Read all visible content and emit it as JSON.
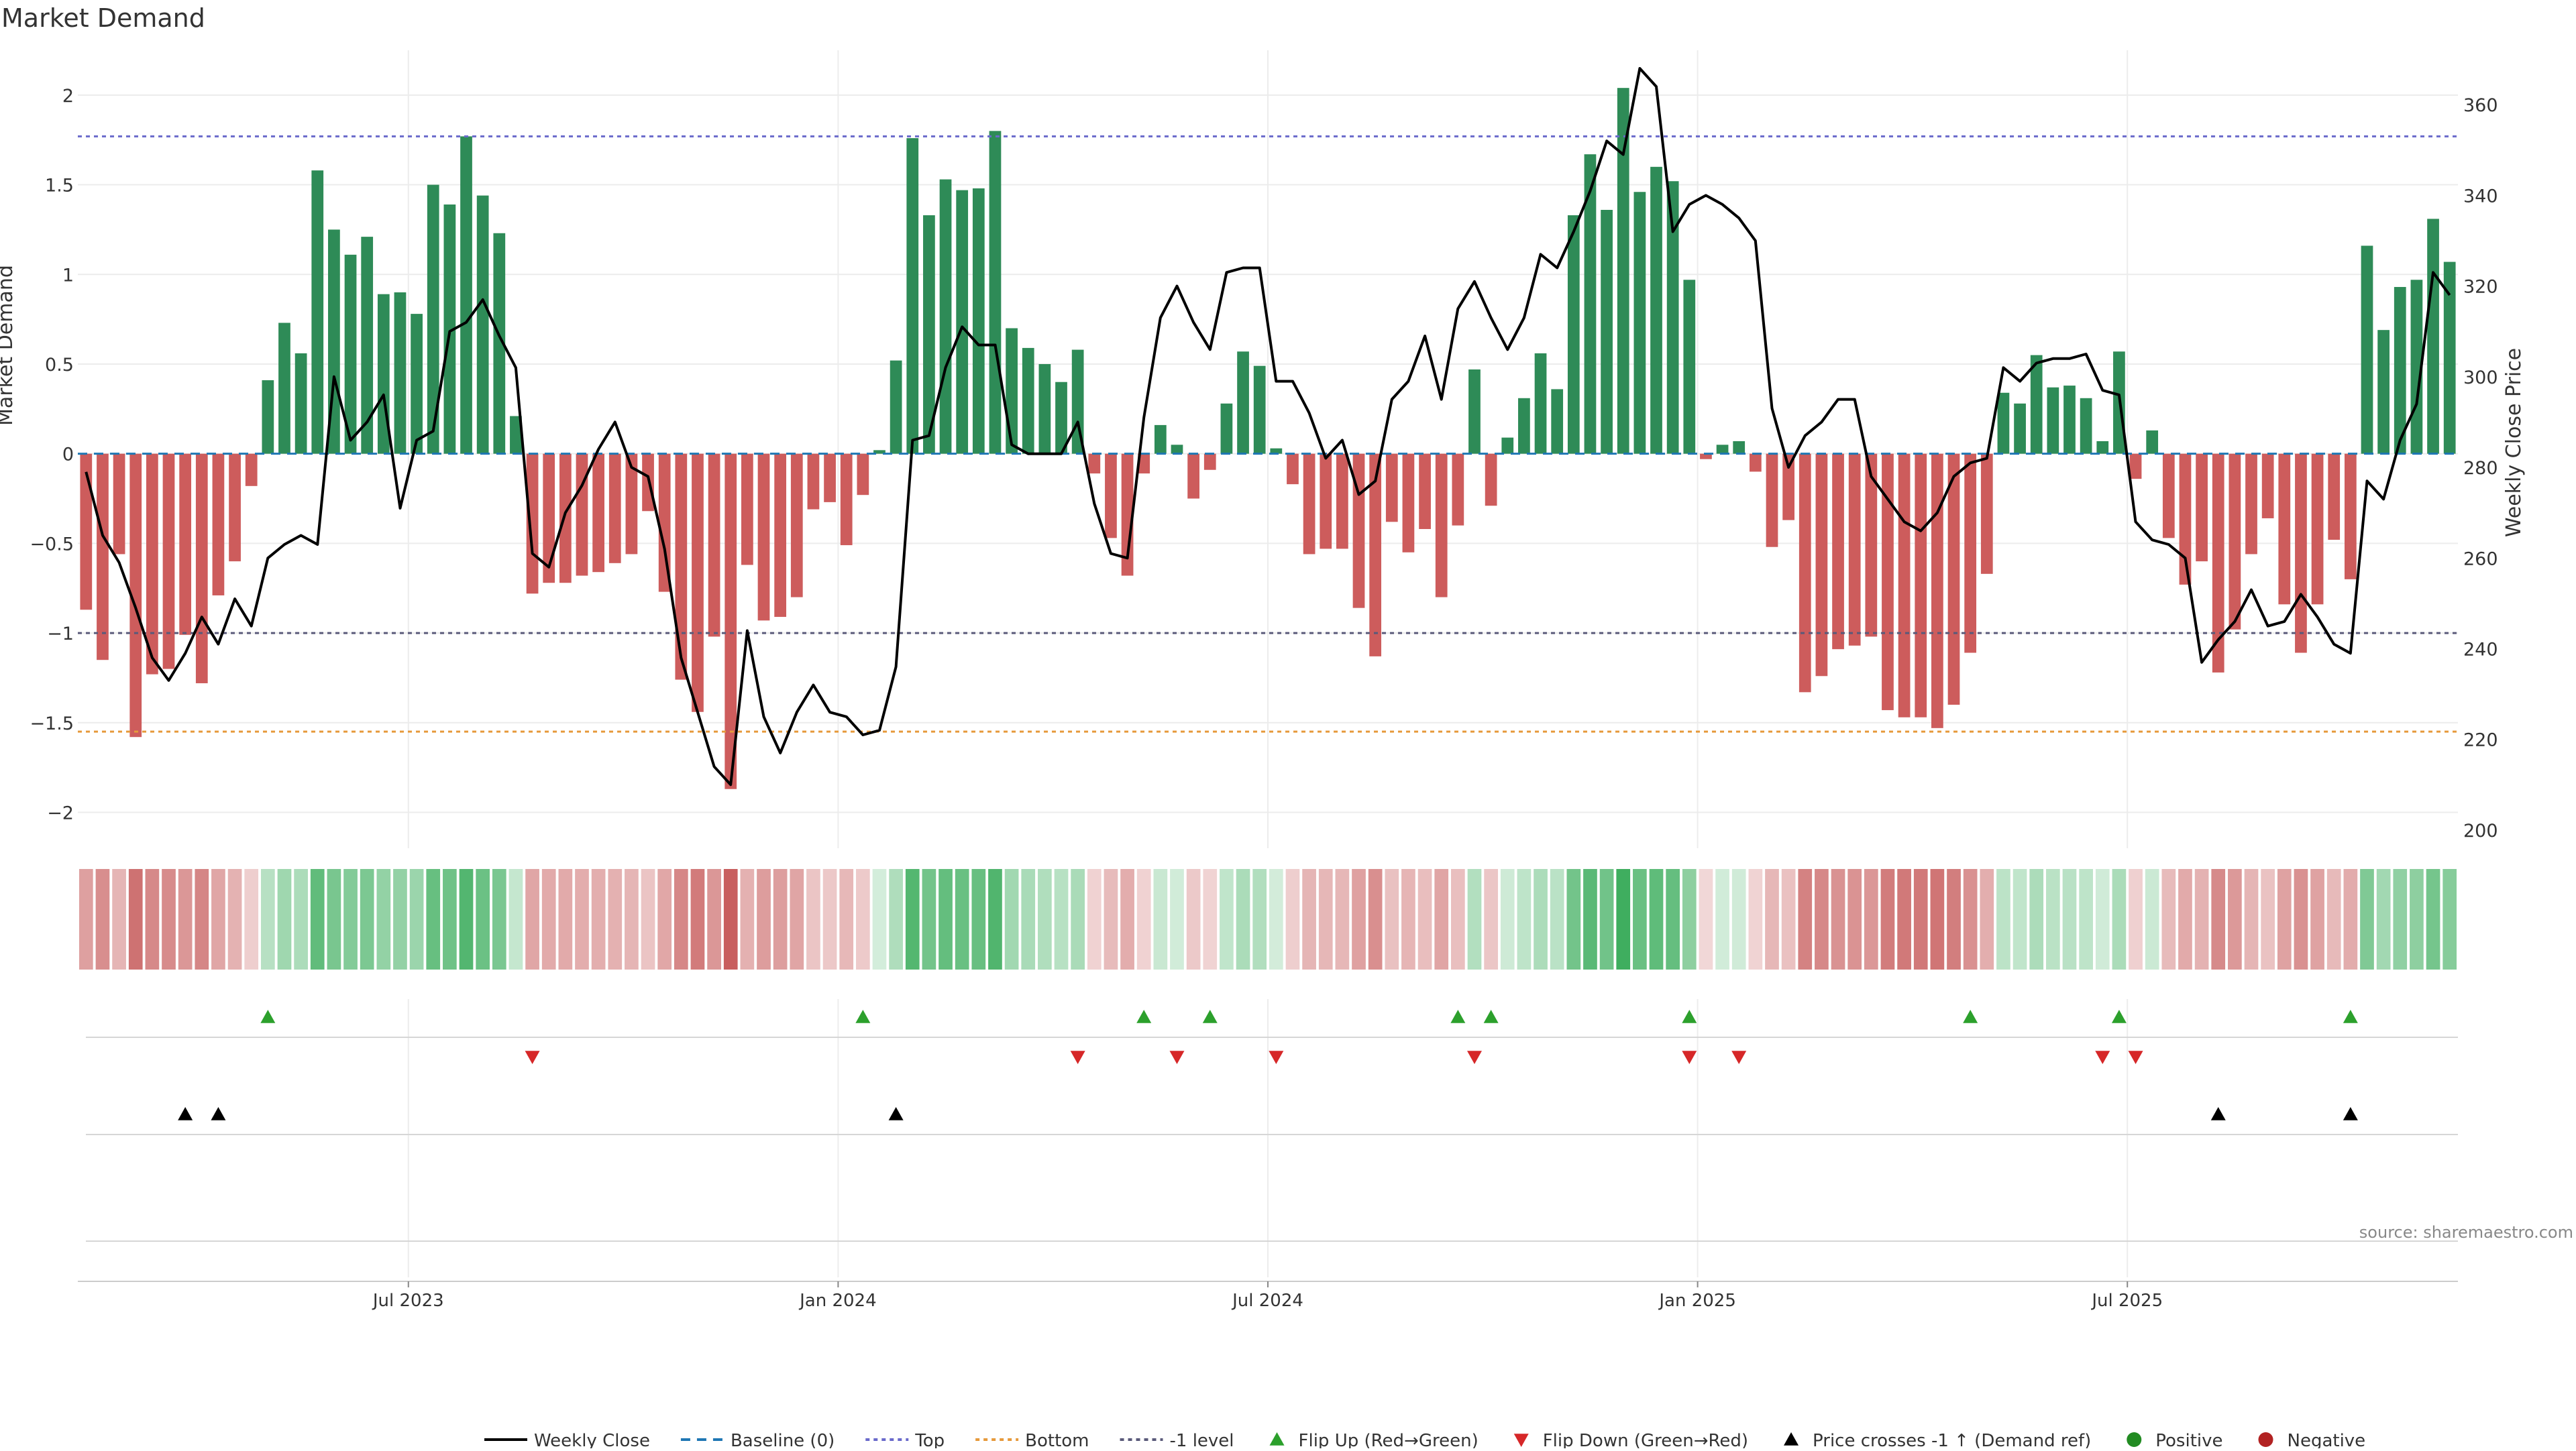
{
  "chart_data": {
    "type": "bar",
    "title": "Market Demand",
    "ylabel_left": "Market Demand",
    "ylabel_right": "Weekly Close Price",
    "source": "source: sharemaestro.com",
    "ylim_left": [
      -2.2,
      2.25
    ],
    "ylim_right": [
      196,
      372
    ],
    "yticks_left": [
      {
        "v": 2,
        "label": "2"
      },
      {
        "v": 1.5,
        "label": "1.5"
      },
      {
        "v": 1,
        "label": "1"
      },
      {
        "v": 0.5,
        "label": "0.5"
      },
      {
        "v": 0,
        "label": "0"
      },
      {
        "v": -0.5,
        "label": "−0.5"
      },
      {
        "v": -1,
        "label": "−1"
      },
      {
        "v": -1.5,
        "label": "−1.5"
      },
      {
        "v": -2,
        "label": "−2"
      }
    ],
    "yticks_right": [
      {
        "v": 360,
        "label": "360"
      },
      {
        "v": 340,
        "label": "340"
      },
      {
        "v": 320,
        "label": "320"
      },
      {
        "v": 300,
        "label": "300"
      },
      {
        "v": 280,
        "label": "280"
      },
      {
        "v": 260,
        "label": "260"
      },
      {
        "v": 240,
        "label": "240"
      },
      {
        "v": 220,
        "label": "220"
      },
      {
        "v": 200,
        "label": "200"
      }
    ],
    "xticks": [
      {
        "week": 20,
        "label": "Jul 2023"
      },
      {
        "week": 46,
        "label": "Jan 2024"
      },
      {
        "week": 72,
        "label": "Jul 2024"
      },
      {
        "week": 98,
        "label": "Jan 2025"
      },
      {
        "week": 124,
        "label": "Jul 2025"
      }
    ],
    "levels": {
      "top": 1.77,
      "bottom": -1.55,
      "minus_one": -1.0,
      "baseline": 0
    },
    "demand": [
      -0.87,
      -1.15,
      -0.56,
      -1.58,
      -1.23,
      -1.2,
      -1.01,
      -1.28,
      -0.79,
      -0.6,
      -0.18,
      0.41,
      0.73,
      0.56,
      1.58,
      1.25,
      1.11,
      1.21,
      0.89,
      0.9,
      0.78,
      1.5,
      1.39,
      1.77,
      1.44,
      1.23,
      0.21,
      -0.78,
      -0.72,
      -0.72,
      -0.68,
      -0.66,
      -0.61,
      -0.56,
      -0.32,
      -0.77,
      -1.26,
      -1.44,
      -1.02,
      -1.87,
      -0.62,
      -0.93,
      -0.91,
      -0.8,
      -0.31,
      -0.27,
      -0.51,
      -0.23,
      0.02,
      0.52,
      1.76,
      1.33,
      1.53,
      1.47,
      1.48,
      1.8,
      0.7,
      0.59,
      0.5,
      0.4,
      0.58,
      -0.11,
      -0.47,
      -0.68,
      -0.11,
      0.16,
      0.05,
      -0.25,
      -0.09,
      0.28,
      0.57,
      0.49,
      0.03,
      -0.17,
      -0.56,
      -0.53,
      -0.53,
      -0.86,
      -1.13,
      -0.38,
      -0.55,
      -0.42,
      -0.8,
      -0.4,
      0.47,
      -0.29,
      0.09,
      0.31,
      0.56,
      0.36,
      1.33,
      1.67,
      1.36,
      2.04,
      1.46,
      1.6,
      1.52,
      0.97,
      -0.03,
      0.05,
      0.07,
      -0.1,
      -0.52,
      -0.37,
      -1.33,
      -1.24,
      -1.09,
      -1.07,
      -1.02,
      -1.43,
      -1.47,
      -1.47,
      -1.53,
      -1.4,
      -1.11,
      -0.67,
      0.34,
      0.28,
      0.55,
      0.37,
      0.38,
      0.31,
      0.07,
      0.57,
      -0.14,
      0.13,
      -0.47,
      -0.73,
      -0.6,
      -1.22,
      -0.98,
      -0.56,
      -0.36,
      -0.84,
      -1.11,
      -0.84,
      -0.48,
      -0.7,
      1.16,
      0.69,
      0.93,
      0.97,
      1.31,
      1.07
    ],
    "weekly_close": [
      279,
      265,
      259,
      249,
      238,
      233,
      239,
      247,
      241,
      251,
      245,
      260,
      263,
      265,
      263,
      300,
      286,
      290,
      296,
      271,
      286,
      288,
      310,
      312,
      317,
      309,
      302,
      261,
      258,
      270,
      276,
      284,
      290,
      280,
      278,
      262,
      238,
      226,
      214,
      210,
      244,
      225,
      217,
      226,
      232,
      226,
      225,
      221,
      222,
      236,
      286,
      287,
      302,
      311,
      307,
      307,
      285,
      283,
      283,
      283,
      290,
      272,
      261,
      260,
      291,
      313,
      320,
      312,
      306,
      323,
      324,
      324,
      299,
      299,
      292,
      282,
      286,
      274,
      277,
      295,
      299,
      309,
      295,
      315,
      321,
      313,
      306,
      313,
      327,
      324,
      332,
      341,
      352,
      349,
      368,
      364,
      332,
      338,
      340,
      338,
      335,
      330,
      293,
      280,
      287,
      290,
      295,
      295,
      278,
      273,
      268,
      266,
      270,
      278,
      281,
      282,
      302,
      299,
      303,
      304,
      304,
      305,
      297,
      296,
      268,
      264,
      263,
      260,
      237,
      242,
      246,
      253,
      245,
      246,
      252,
      247,
      241,
      239,
      277,
      273,
      286,
      294,
      323,
      318
    ],
    "series": [
      {
        "name": "Weekly Close",
        "values_ref": "weekly_close"
      },
      {
        "name": "Market Demand",
        "values_ref": "demand"
      }
    ],
    "flip_up_weeks": [
      11,
      47,
      64,
      68,
      83,
      85,
      97,
      114,
      123,
      137
    ],
    "flip_down_weeks": [
      27,
      60,
      66,
      72,
      84,
      97,
      100,
      122,
      124
    ],
    "price_cross_weeks": [
      6,
      8,
      49,
      129,
      137
    ],
    "legend": [
      {
        "key": "weekly_close",
        "label": "Weekly Close"
      },
      {
        "key": "baseline",
        "label": "Baseline (0)"
      },
      {
        "key": "top",
        "label": "Top"
      },
      {
        "key": "bottom",
        "label": "Bottom"
      },
      {
        "key": "minus_one",
        "label": "-1 level"
      },
      {
        "key": "flip_up",
        "label": "Flip Up (Red→Green)"
      },
      {
        "key": "flip_down",
        "label": "Flip Down (Green→Red)"
      },
      {
        "key": "price_cross",
        "label": "Price crosses -1 ↑ (Demand ref)"
      },
      {
        "key": "positive",
        "label": "Positive"
      },
      {
        "key": "negative",
        "label": "Negative"
      }
    ],
    "colors": {
      "positive": "#2e8b57",
      "negative": "#cd5c5c",
      "line": "#000000",
      "baseline": "#1f77b4",
      "top": "#6a6acb",
      "bottom": "#e69a3c",
      "minus_one": "#5a5a7a",
      "flip_up": "#2ca02c",
      "flip_down": "#d62728",
      "price_cross": "#000000",
      "legend_positive": "#228b22",
      "legend_negative": "#b22222",
      "grid": "#ececec"
    }
  }
}
